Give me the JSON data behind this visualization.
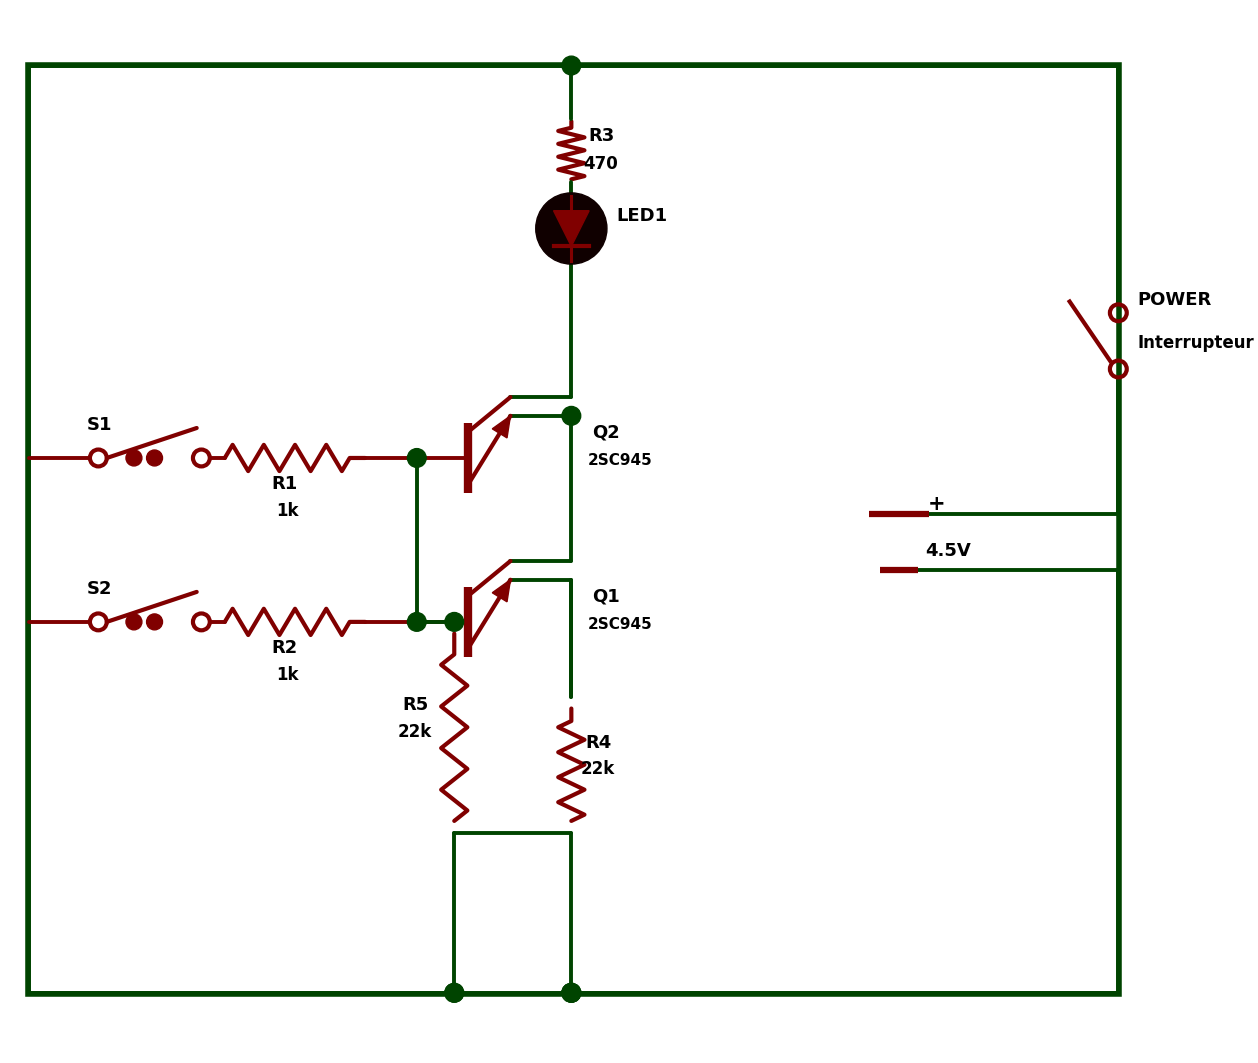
{
  "bg_color": "#ffffff",
  "wire_color": "#004400",
  "comp_color": "#800000",
  "text_color": "#000000",
  "border_color": "#004400",
  "figsize": [
    12.58,
    10.63
  ],
  "dpi": 100,
  "lw_wire": 2.8,
  "lw_comp": 3.0,
  "lw_border": 4.0,
  "dot_r": 0.1,
  "border": [
    0.3,
    0.38,
    11.65,
    9.95
  ]
}
